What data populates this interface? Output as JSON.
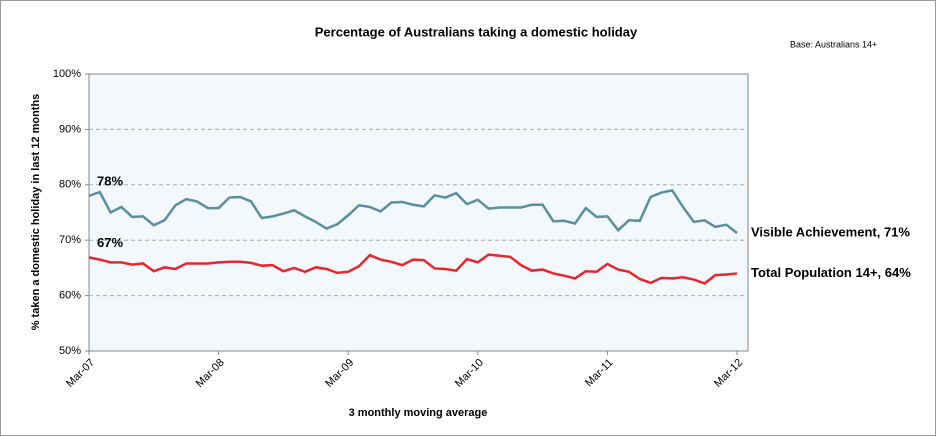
{
  "chart_data": {
    "type": "line",
    "title": "Percentage of Australians taking a domestic holiday",
    "subtitle": "Base: Australians 14+",
    "x_label": "3 monthly moving average",
    "y_label": "% taken a domestic holiday in last 12 months",
    "categories": [
      "Mar-07",
      null,
      null,
      null,
      null,
      null,
      null,
      null,
      null,
      null,
      null,
      null,
      "Mar-08",
      null,
      null,
      null,
      null,
      null,
      null,
      null,
      null,
      null,
      null,
      null,
      "Mar-09",
      null,
      null,
      null,
      null,
      null,
      null,
      null,
      null,
      null,
      null,
      null,
      "Mar-10",
      null,
      null,
      null,
      null,
      null,
      null,
      null,
      null,
      null,
      null,
      null,
      "Mar-11",
      null,
      null,
      null,
      null,
      null,
      null,
      null,
      null,
      null,
      null,
      null,
      "Mar-12"
    ],
    "series": [
      {
        "name": "Visible Achievement, 71%",
        "color": "#5b8e9e",
        "values": [
          78,
          78.7,
          75,
          76,
          74.2,
          74.3,
          72.7,
          73.6,
          76.3,
          77.4,
          77,
          75.8,
          75.8,
          77.7,
          77.8,
          77,
          74,
          74.3,
          74.8,
          75.4,
          74.3,
          73.3,
          72.1,
          72.9,
          74.5,
          76.3,
          76,
          75.2,
          76.8,
          76.9,
          76.4,
          76.1,
          78.1,
          77.7,
          78.5,
          76.5,
          77.3,
          75.7,
          75.9,
          75.9,
          75.9,
          76.4,
          76.4,
          73.4,
          73.5,
          73,
          75.8,
          74.2,
          74.3,
          71.8,
          73.6,
          73.5,
          77.8,
          78.6,
          79,
          76,
          73.3,
          73.6,
          72.4,
          72.8,
          71.3
        ]
      },
      {
        "name": "Total Population 14+, 64%",
        "color": "#e8262d",
        "values": [
          66.9,
          66.5,
          66,
          66,
          65.6,
          65.8,
          64.4,
          65.1,
          64.8,
          65.8,
          65.8,
          65.8,
          66,
          66.1,
          66.1,
          65.9,
          65.4,
          65.5,
          64.4,
          65,
          64.3,
          65.1,
          64.8,
          64.1,
          64.3,
          65.3,
          67.3,
          66.5,
          66.1,
          65.5,
          66.5,
          66.4,
          64.9,
          64.8,
          64.5,
          66.6,
          66,
          67.4,
          67.2,
          67,
          65.5,
          64.5,
          64.7,
          64,
          63.6,
          63.1,
          64.4,
          64.3,
          65.7,
          64.7,
          64.3,
          63,
          62.3,
          63.2,
          63.1,
          63.3,
          62.9,
          62.2,
          63.7,
          63.8,
          64
        ]
      }
    ],
    "annotations": [
      "78%",
      "67%"
    ],
    "ylim": [
      50,
      100
    ],
    "yticks": [
      {
        "value": 50,
        "label": "50%"
      },
      {
        "value": 60,
        "label": "60%"
      },
      {
        "value": 70,
        "label": "70%"
      },
      {
        "value": 80,
        "label": "80%"
      },
      {
        "value": 90,
        "label": "90%"
      },
      {
        "value": 100,
        "label": "100%"
      }
    ],
    "grid": true
  }
}
